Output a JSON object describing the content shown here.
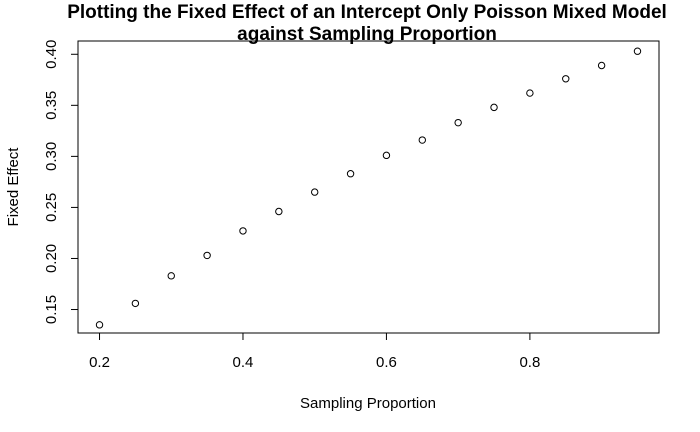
{
  "chart_data": {
    "type": "scatter",
    "title_line1": "Plotting the Fixed Effect of an Intercept Only Poisson Mixed Model",
    "title_line2": "against Sampling Proportion",
    "xlabel": "Sampling Proportion",
    "ylabel": "Fixed Effect",
    "xlim": [
      0.17,
      0.98
    ],
    "ylim": [
      0.127,
      0.413
    ],
    "x_ticks": [
      0.2,
      0.4,
      0.6,
      0.8
    ],
    "x_tick_labels": [
      "0.2",
      "0.4",
      "0.6",
      "0.8"
    ],
    "y_ticks": [
      0.15,
      0.2,
      0.25,
      0.3,
      0.35,
      0.4
    ],
    "y_tick_labels": [
      "0.15",
      "0.20",
      "0.25",
      "0.30",
      "0.35",
      "0.40"
    ],
    "grid": false,
    "marker": "open-circle",
    "x": [
      0.2,
      0.25,
      0.3,
      0.35,
      0.4,
      0.45,
      0.5,
      0.55,
      0.6,
      0.65,
      0.7,
      0.75,
      0.8,
      0.85,
      0.9,
      0.95
    ],
    "y": [
      0.135,
      0.156,
      0.183,
      0.203,
      0.227,
      0.246,
      0.265,
      0.283,
      0.301,
      0.316,
      0.333,
      0.348,
      0.362,
      0.376,
      0.389,
      0.403
    ]
  }
}
